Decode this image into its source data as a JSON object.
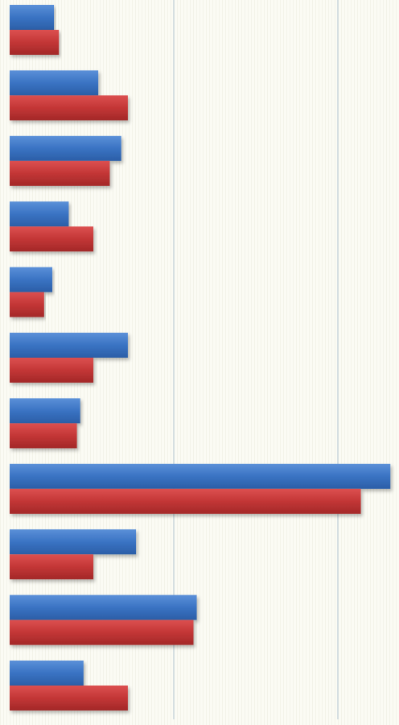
{
  "chart_data": {
    "type": "bar",
    "orientation": "horizontal",
    "grid": true,
    "xlim": [
      0,
      4.5
    ],
    "gridlines_x": [
      1,
      2,
      3,
      4
    ],
    "categories": [
      "",
      "",
      "",
      "",
      "",
      "",
      "",
      "",
      "",
      "",
      ""
    ],
    "series": [
      {
        "color": "#3a73c3",
        "values": [
          0.27,
          0.54,
          0.68,
          0.36,
          0.26,
          0.72,
          0.43,
          2.32,
          0.77,
          1.14,
          0.45
        ]
      },
      {
        "color": "#c33636",
        "values": [
          0.3,
          0.72,
          0.61,
          0.51,
          0.21,
          0.51,
          0.41,
          2.14,
          0.51,
          1.12,
          0.72
        ]
      }
    ]
  }
}
